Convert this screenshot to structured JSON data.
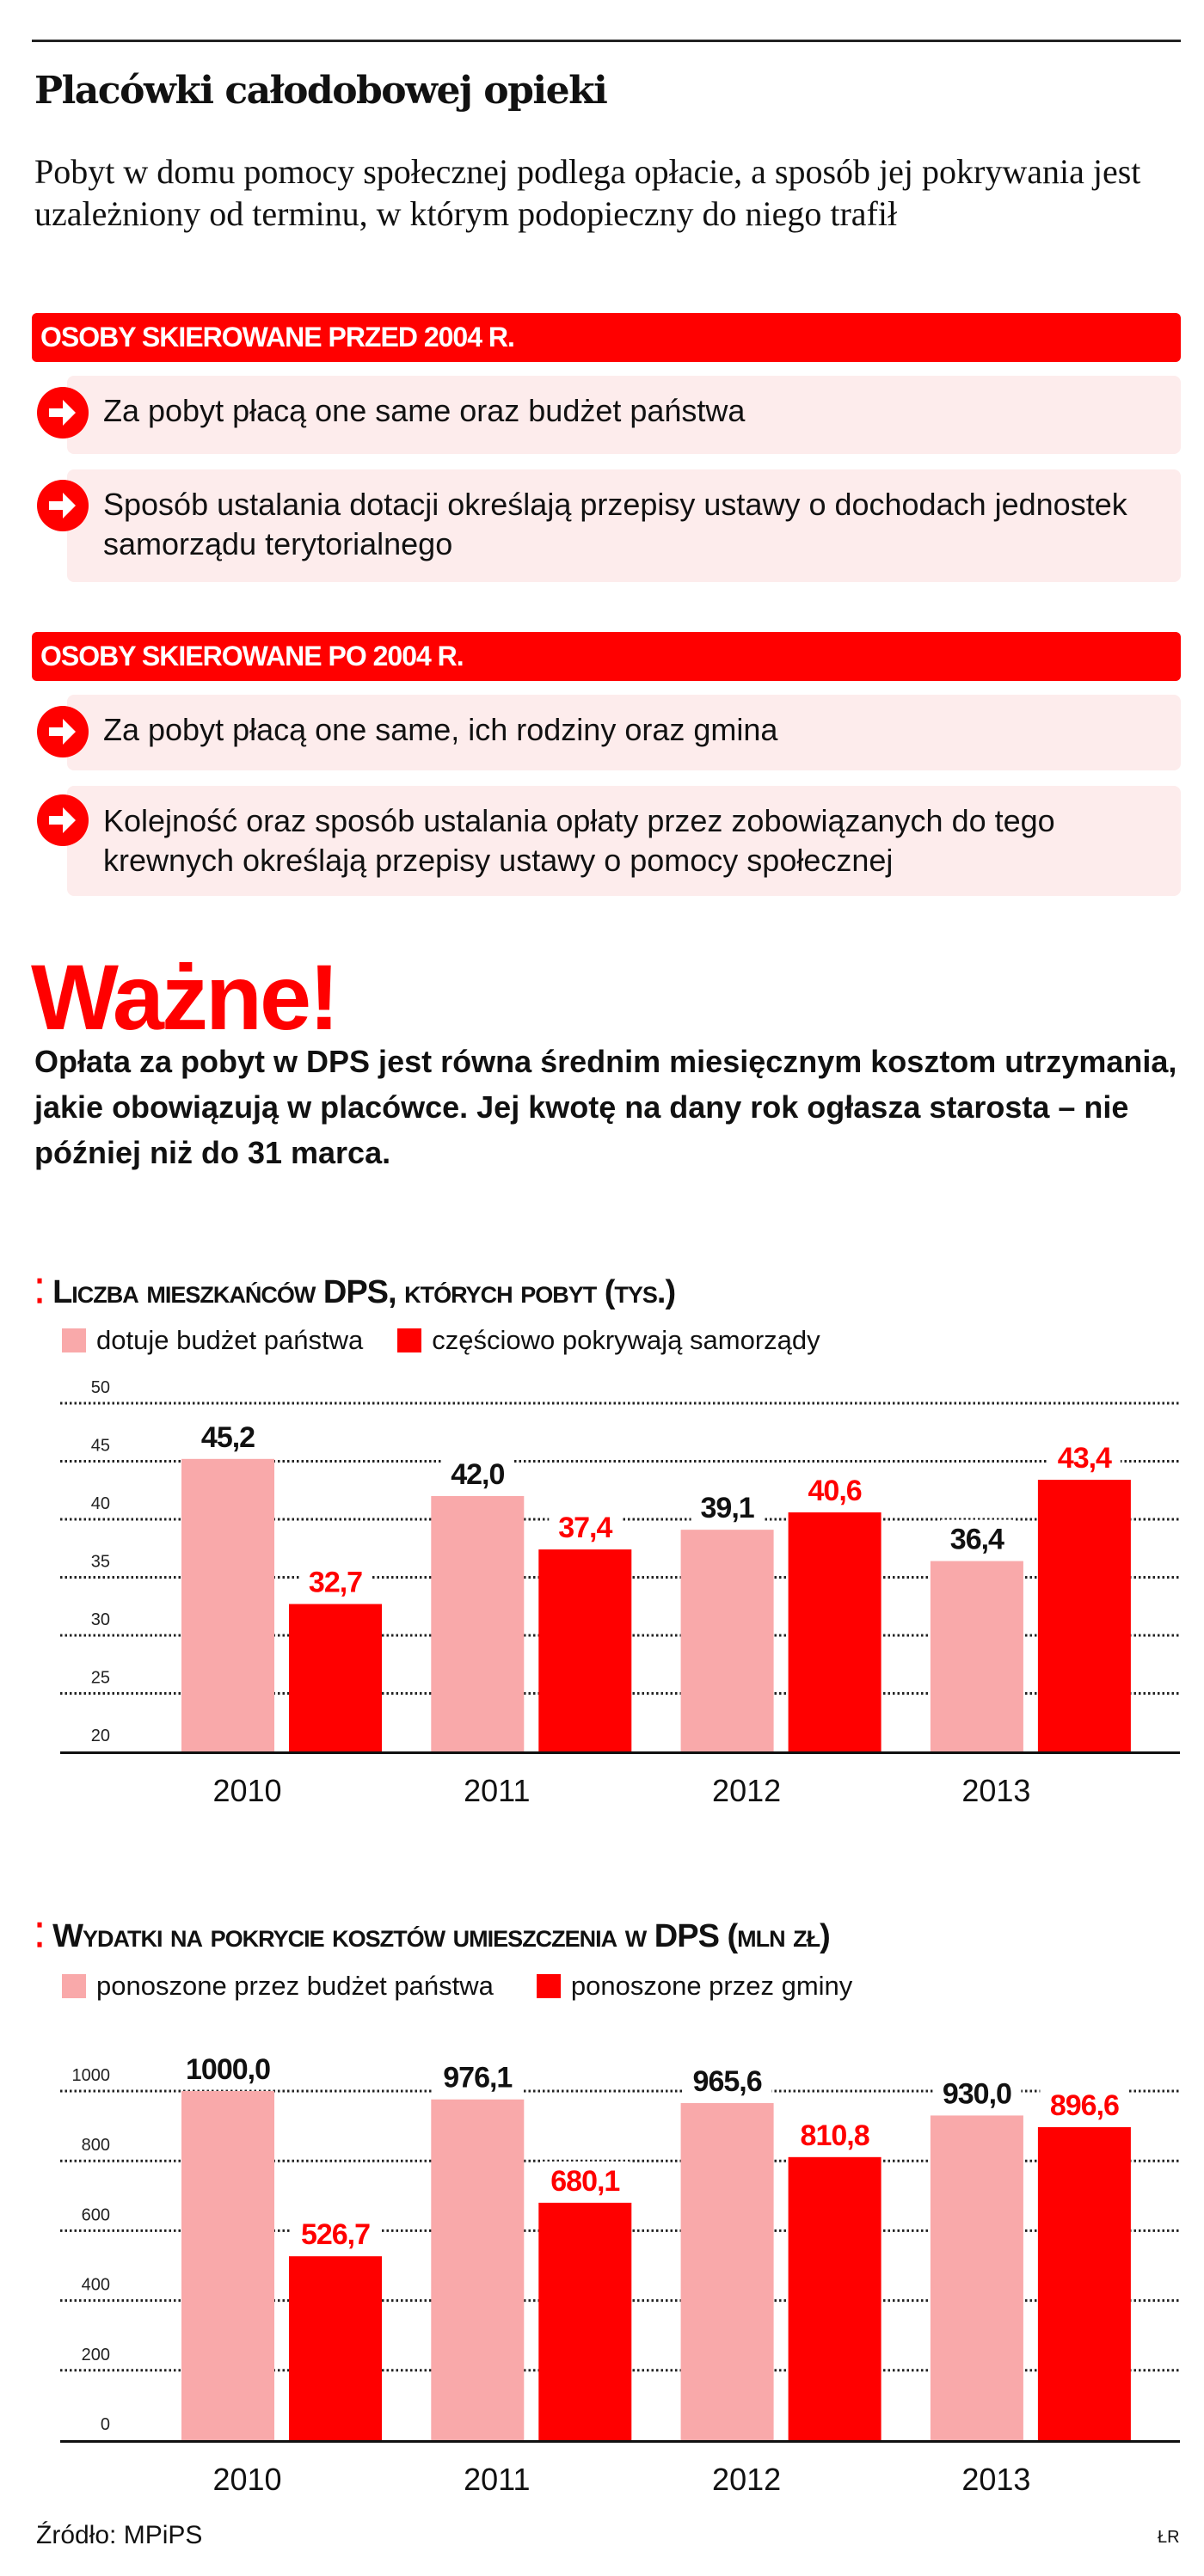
{
  "header": {
    "title": "Placówki całodobowej opieki",
    "subtitle": "Pobyt w domu pomocy społecznej podlega opłacie, a sposób jej pokrywania jest uzależniony od terminu, w którym podopieczny do niego trafił"
  },
  "sections": [
    {
      "banner": "OSOBY SKIEROWANE PRZED 2004 R.",
      "items": [
        "Za pobyt płacą one same oraz budżet państwa",
        "Sposób ustalania dotacji określają przepisy ustawy o dochodach jednostek samorządu terytorialnego"
      ]
    },
    {
      "banner": "OSOBY SKIEROWANE PO 2004 R.",
      "items": [
        "Za pobyt płacą one same, ich rodziny oraz gmina",
        "Kolejność oraz sposób ustalania opłaty przez zobowiązanych do tego krewnych określają przepisy ustawy o pomocy społecznej"
      ]
    }
  ],
  "important": {
    "heading": "Ważne!",
    "text": "Opłata za pobyt w DPS jest równa średnim miesięcznym kosztom utrzymania, jakie obowiązują w placówce. Jej kwotę na dany rok ogłasza starosta – nie później niż do 31 marca."
  },
  "icons": {
    "bullet": "arrow-right-circle-icon",
    "chart_marker": "dots-icon"
  },
  "colors": {
    "accent": "#ff0000",
    "light": "#f9a9aa",
    "item_bg": "#fdecec"
  },
  "chart_data": [
    {
      "type": "bar",
      "title": "Liczba mieszkańców DPS, których pobyt (tys.)",
      "categories": [
        "2010",
        "2011",
        "2012",
        "2013"
      ],
      "series": [
        {
          "name": "dotuje budżet państwa",
          "color": "#f9a9aa",
          "label_color": "#111111",
          "values": [
            45.2,
            42.0,
            39.1,
            36.4
          ],
          "labels": [
            "45,2",
            "42,0",
            "39,1",
            "36,4"
          ]
        },
        {
          "name": "częściowo pokrywają samorządy",
          "color": "#ff0000",
          "label_color": "#ff0000",
          "values": [
            32.7,
            37.4,
            40.6,
            43.4
          ],
          "labels": [
            "32,7",
            "37,4",
            "40,6",
            "43,4"
          ]
        }
      ],
      "ylim": [
        20,
        50
      ],
      "yticks": [
        20,
        25,
        30,
        35,
        40,
        45,
        50
      ],
      "grid": true,
      "legend": "top-left"
    },
    {
      "type": "bar",
      "title": "Wydatki na pokrycie kosztów umieszczenia w DPS (mln zł)",
      "categories": [
        "2010",
        "2011",
        "2012",
        "2013"
      ],
      "series": [
        {
          "name": "ponoszone przez budżet państwa",
          "color": "#f9a9aa",
          "label_color": "#111111",
          "values": [
            1000.0,
            976.1,
            965.6,
            930.0
          ],
          "labels": [
            "1000,0",
            "976,1",
            "965,6",
            "930,0"
          ]
        },
        {
          "name": "ponoszone przez gminy",
          "color": "#ff0000",
          "label_color": "#ff0000",
          "values": [
            526.7,
            680.1,
            810.8,
            896.6
          ],
          "labels": [
            "526,7",
            "680,1",
            "810,8",
            "896,6"
          ]
        }
      ],
      "ylim": [
        0,
        1000
      ],
      "yticks": [
        0,
        200,
        400,
        600,
        800,
        1000
      ],
      "grid": true,
      "legend": "top-left"
    }
  ],
  "footer": {
    "source": "Źródło: MPiPS",
    "author": "ŁR"
  }
}
